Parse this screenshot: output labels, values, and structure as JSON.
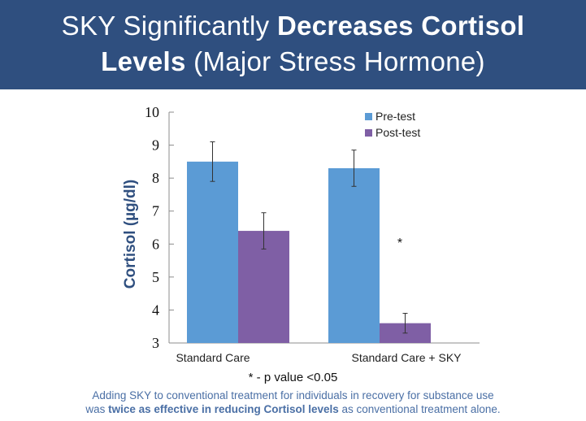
{
  "header": {
    "title_line1_regular": "SKY Significantly ",
    "title_line1_bold": "Decreases Cortisol",
    "title_line2_bold": "Levels",
    "title_line2_regular": " (Major Stress Hormone)",
    "background": "#2f4f7f"
  },
  "chart_data": {
    "type": "bar",
    "categories": [
      "Standard Care",
      "Standard Care + SKY"
    ],
    "series": [
      {
        "name": "Pre-test",
        "color": "#5b9bd5",
        "values": [
          8.5,
          8.3
        ],
        "error": [
          0.6,
          0.55
        ]
      },
      {
        "name": "Post-test",
        "color": "#7f5fa5",
        "values": [
          6.4,
          3.6
        ],
        "error": [
          0.55,
          0.3
        ]
      }
    ],
    "ylabel": "Cortisol (µg/dl)",
    "ylim": [
      3,
      10
    ],
    "yticks": [
      "3",
      "4",
      "5",
      "6",
      "7",
      "8",
      "9",
      "10"
    ],
    "annotation": "*",
    "legend": "top-right",
    "grid": false
  },
  "footnote": "* - p value <0.05",
  "caption": {
    "part1": "Adding SKY to  conventional treatment for individuals in recovery for substance use",
    "part2": "was ",
    "bold": "twice as effective in reducing Cortisol levels",
    "part3": " as conventional treatment alone."
  }
}
